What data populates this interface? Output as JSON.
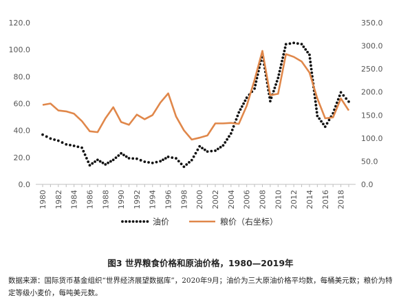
{
  "caption": "图3 世界粮食价格和原油价格，1980—2019年",
  "source_note": "数据来源：国际货币基金组织“世界经济展望数据库”，2020年9月；油价为三大原油价格平均数，每桶美元数；粮价为特定等级小麦价，每吨美元数。",
  "colors": {
    "oil": "#111111",
    "grain": "#e0874a",
    "axis": "#bfbfbf",
    "text": "#555555"
  },
  "chart_data": {
    "type": "line",
    "x": [
      1980,
      1981,
      1982,
      1983,
      1984,
      1985,
      1986,
      1987,
      1988,
      1989,
      1990,
      1991,
      1992,
      1993,
      1994,
      1995,
      1996,
      1997,
      1998,
      1999,
      2000,
      2001,
      2002,
      2003,
      2004,
      2005,
      2006,
      2007,
      2008,
      2009,
      2010,
      2011,
      2012,
      2013,
      2014,
      2015,
      2016,
      2017,
      2018,
      2019
    ],
    "x_tick_labels": [
      "1980",
      "1982",
      "1984",
      "1986",
      "1988",
      "1990",
      "1992",
      "1994",
      "1996",
      "1998",
      "2000",
      "2002",
      "2004",
      "2006",
      "2008",
      "2010",
      "2012",
      "2014",
      "2016",
      "2018"
    ],
    "y_left": {
      "ticks": [
        "0.0",
        "20.0",
        "40.0",
        "60.0",
        "80.0",
        "100.0",
        "120.0"
      ],
      "ylim": [
        0,
        120
      ]
    },
    "y_right": {
      "ticks": [
        "0.0",
        "50.0",
        "100.0",
        "150.0",
        "200.0",
        "250.0",
        "300.0",
        "350.0"
      ],
      "ylim": [
        0,
        350
      ]
    },
    "series": [
      {
        "name": "油价",
        "axis": "left",
        "style": "dotted",
        "values": [
          36.9,
          34.0,
          32.4,
          29.7,
          28.6,
          27.2,
          14.2,
          18.2,
          14.8,
          18.2,
          23.0,
          19.4,
          19.0,
          16.8,
          15.9,
          17.2,
          20.4,
          19.3,
          13.1,
          18.0,
          28.2,
          24.4,
          25.0,
          28.9,
          37.8,
          53.4,
          64.3,
          71.1,
          97.0,
          61.8,
          79.0,
          104.0,
          105.0,
          104.1,
          96.2,
          50.8,
          42.8,
          52.8,
          68.3,
          61.4
        ]
      },
      {
        "name": "粮价（右坐标）",
        "axis": "right",
        "style": "solid",
        "values": [
          172,
          175,
          160,
          158,
          153,
          137,
          115,
          113,
          143,
          167,
          135,
          129,
          151,
          141,
          150,
          177,
          197,
          147,
          117,
          97,
          101,
          106,
          132,
          132,
          133,
          131,
          170,
          226,
          289,
          193,
          196,
          282,
          276,
          266,
          242,
          186,
          143,
          145,
          186,
          160
        ]
      }
    ],
    "legend": {
      "placement": "bottom-center",
      "entries": [
        "油价",
        "粮价（右坐标）"
      ]
    },
    "grid": false
  }
}
